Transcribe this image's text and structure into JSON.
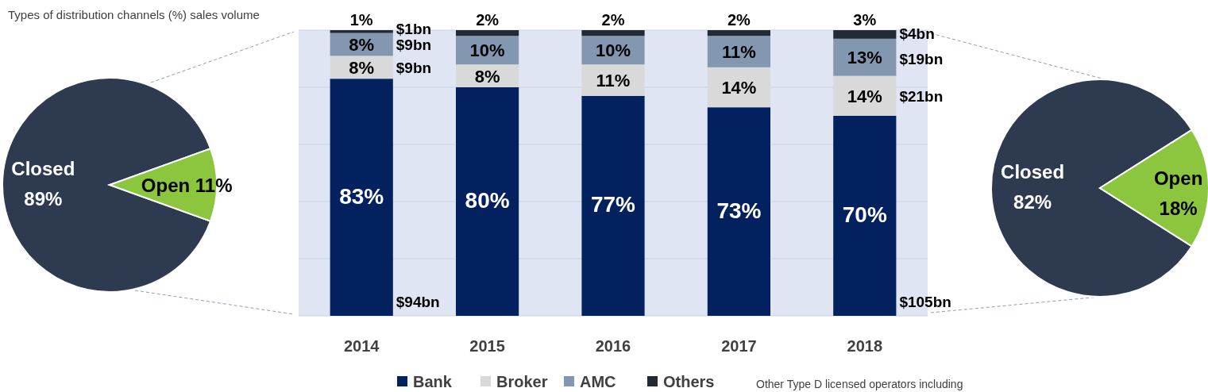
{
  "chart_data": [
    {
      "type": "pie",
      "categories": [
        "Closed",
        "Open"
      ],
      "values": [
        89,
        11
      ],
      "colors": [
        "#2e3a4f",
        "#8cc63f"
      ],
      "value_labels": [
        "89%",
        "11%"
      ]
    },
    {
      "type": "bar",
      "title": "Types of distribution channels (%) sales volume",
      "stacked": true,
      "categories": [
        "2014",
        "2015",
        "2016",
        "2017",
        "2018"
      ],
      "series": [
        {
          "name": "Bank",
          "color": "#03215e",
          "values": [
            83,
            80,
            77,
            73,
            70
          ],
          "value_labels": [
            "83%",
            "80%",
            "77%",
            "73%",
            "70%"
          ]
        },
        {
          "name": "Broker",
          "color": "#d9d9d9",
          "values": [
            8,
            8,
            11,
            14,
            14
          ],
          "value_labels": [
            "8%",
            "8%",
            "11%",
            "14%",
            "14%"
          ]
        },
        {
          "name": "AMC",
          "color": "#8497b0",
          "values": [
            8,
            10,
            10,
            11,
            13
          ],
          "value_labels": [
            "8%",
            "10%",
            "10%",
            "11%",
            "13%"
          ]
        },
        {
          "name": "Others",
          "color": "#222a35",
          "values": [
            1,
            2,
            2,
            2,
            3
          ],
          "value_labels": [
            "1%",
            "2%",
            "2%",
            "2%",
            "3%"
          ]
        }
      ],
      "ylim": [
        0,
        100
      ],
      "yticks": [
        {
          "value": 0,
          "label": null
        },
        {
          "value": 20,
          "label": null
        },
        {
          "value": 40,
          "label": null
        },
        {
          "value": 60,
          "label": null
        },
        {
          "value": 80,
          "label": null
        },
        {
          "value": 100,
          "label": null
        }
      ],
      "grid": "y",
      "legend": "bottom",
      "tick_labels": "x",
      "annotations": [
        "$94bn",
        "$9bn",
        "$9bn",
        "$1bn",
        "$105bn",
        "$21bn",
        "$19bn",
        "$4bn",
        "Other Type D licensed operators including"
      ]
    },
    {
      "type": "pie",
      "categories": [
        "Closed",
        "Open"
      ],
      "values": [
        82,
        18
      ],
      "colors": [
        "#2e3a4f",
        "#8cc63f"
      ],
      "value_labels": [
        "82%",
        "18%"
      ]
    }
  ]
}
